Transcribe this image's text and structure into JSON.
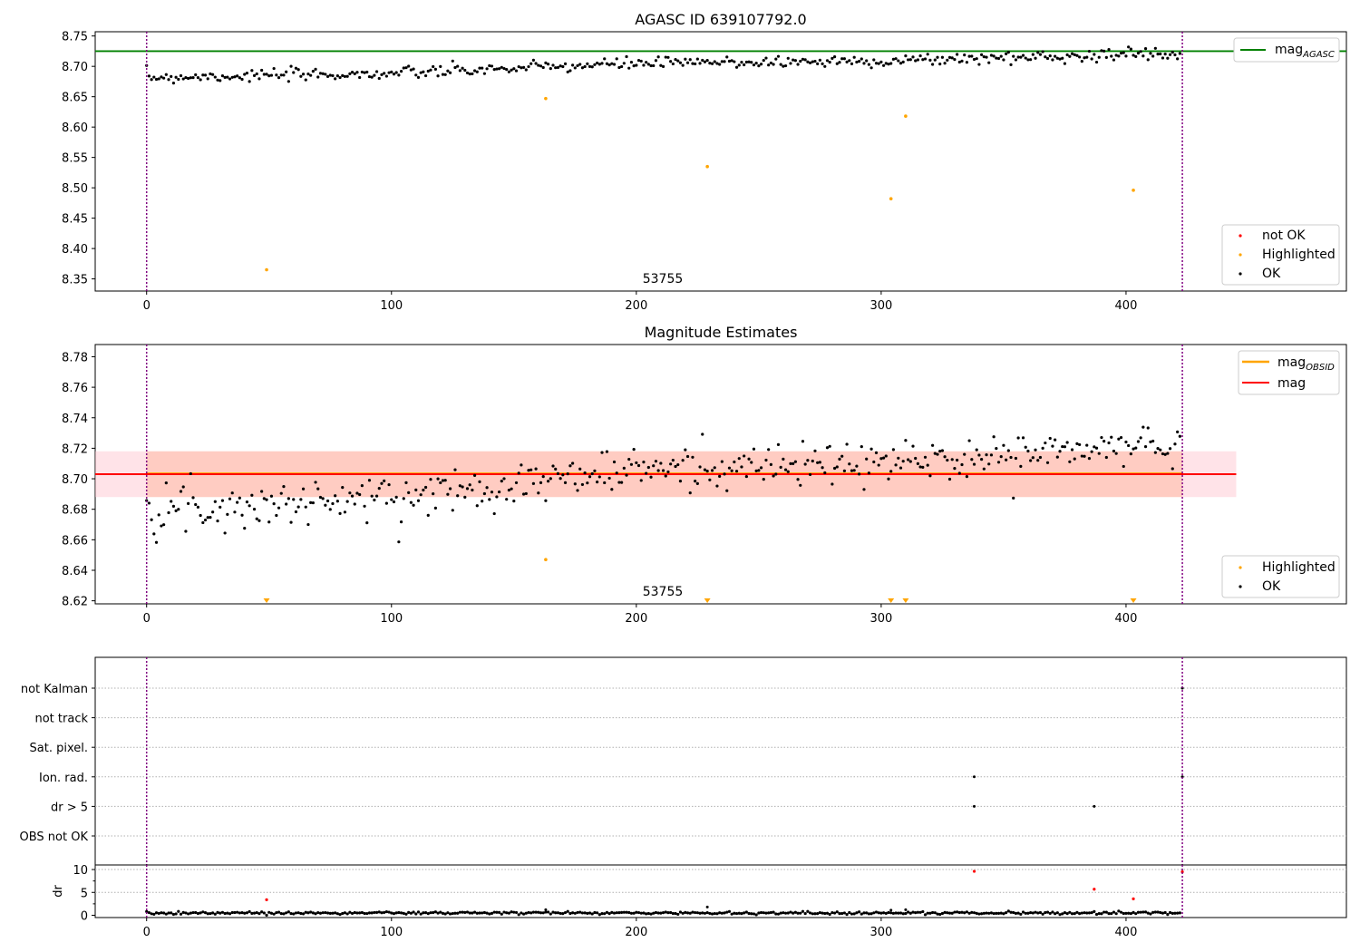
{
  "chart_data": [
    {
      "type": "scatter",
      "title": "AGASC ID 639107792.0",
      "xlabel": "",
      "ylabel": "",
      "xlim": [
        -21,
        490
      ],
      "ylim": [
        8.33,
        8.757
      ],
      "xticks": [
        "0",
        "100",
        "200",
        "300",
        "400"
      ],
      "yticks": [
        "8.35",
        "8.40",
        "8.45",
        "8.50",
        "8.55",
        "8.60",
        "8.65",
        "8.70",
        "8.75"
      ],
      "annotation": {
        "text": "53755",
        "x": 211,
        "y": 8.345
      },
      "vlines": [
        0,
        423
      ],
      "hlines": [
        {
          "name": "mag_AGASC",
          "y": 8.725,
          "color": "#008000"
        }
      ],
      "ok_series": {
        "name": "OK",
        "color": "#000000",
        "n": 423,
        "trend": [
          [
            0,
            8.682
          ],
          [
            100,
            8.688
          ],
          [
            200,
            8.705
          ],
          [
            300,
            8.709
          ],
          [
            423,
            8.722
          ]
        ],
        "noise": 0.005
      },
      "highlighted_series": {
        "name": "Highlighted",
        "color": "#ffa500",
        "points": [
          [
            49,
            8.365
          ],
          [
            163,
            8.647
          ],
          [
            229,
            8.535
          ],
          [
            304,
            8.482
          ],
          [
            310,
            8.618
          ],
          [
            403,
            8.496
          ]
        ]
      },
      "legend": {
        "upper": {
          "position": "top-right",
          "entries": [
            {
              "label": "mag",
              "sub": "AGASC",
              "color": "#008000",
              "kind": "line"
            }
          ]
        },
        "lower": {
          "position": "bottom-right",
          "entries": [
            {
              "label": "not OK",
              "color": "#ff0000",
              "kind": "dot"
            },
            {
              "label": "Highlighted",
              "color": "#ffa500",
              "kind": "dot"
            },
            {
              "label": "OK",
              "color": "#000000",
              "kind": "dot"
            }
          ]
        }
      }
    },
    {
      "type": "scatter",
      "title": "Magnitude Estimates",
      "xlabel": "",
      "ylabel": "",
      "xlim": [
        -21,
        490
      ],
      "ylim": [
        8.618,
        8.788
      ],
      "xticks": [
        "0",
        "100",
        "200",
        "300",
        "400"
      ],
      "yticks": [
        "8.62",
        "8.64",
        "8.66",
        "8.68",
        "8.70",
        "8.72",
        "8.74",
        "8.76",
        "8.78"
      ],
      "annotation": {
        "text": "53755",
        "x": 211,
        "y": 8.623
      },
      "vlines": [
        0,
        423
      ],
      "bands": [
        {
          "name": "mag band",
          "x": [
            -21,
            445
          ],
          "y": [
            8.688,
            8.718
          ],
          "color": "#ffc0cb",
          "opacity": 0.45
        },
        {
          "name": "mag_OBSID band",
          "x": [
            0,
            423
          ],
          "y": [
            8.688,
            8.718
          ],
          "color": "#ffa07a",
          "opacity": 0.35
        }
      ],
      "hlines": [
        {
          "name": "mag_OBSID",
          "y": 8.7035,
          "x": [
            0,
            423
          ],
          "color": "#ffa500"
        },
        {
          "name": "mag",
          "y": 8.703,
          "x": [
            -21,
            445
          ],
          "color": "#ff0000"
        }
      ],
      "ok_series": {
        "name": "OK",
        "color": "#000000",
        "n": 423,
        "trend": [
          [
            0,
            8.683
          ],
          [
            30,
            8.681
          ],
          [
            100,
            8.688
          ],
          [
            200,
            8.706
          ],
          [
            300,
            8.71
          ],
          [
            423,
            8.723
          ]
        ],
        "noise": 0.007
      },
      "highlighted_series": {
        "name": "Highlighted",
        "color": "#ffa500",
        "points": [
          [
            163,
            8.647
          ]
        ],
        "offscale_x": [
          49,
          229,
          304,
          310,
          403
        ]
      },
      "legend": {
        "upper": {
          "position": "top-right",
          "entries": [
            {
              "label": "mag",
              "sub": "OBSID",
              "color": "#ffa500",
              "kind": "line"
            },
            {
              "label": "mag",
              "sub": "",
              "color": "#ff0000",
              "kind": "line"
            }
          ]
        },
        "lower": {
          "position": "bottom-right",
          "entries": [
            {
              "label": "Highlighted",
              "color": "#ffa500",
              "kind": "dot"
            },
            {
              "label": "OK",
              "color": "#000000",
              "kind": "dot"
            }
          ]
        }
      }
    },
    {
      "type": "scatter",
      "title": "",
      "xlabel": "",
      "ylabel": "",
      "xlim": [
        -21,
        490
      ],
      "categories": [
        "not Kalman",
        "not track",
        "Sat. pixel.",
        "Ion. rad.",
        "dr > 5",
        "OBS not OK"
      ],
      "vlines": [
        0,
        423
      ],
      "flag_points": [
        {
          "category": "Ion. rad.",
          "x": [
            338,
            423
          ]
        },
        {
          "category": "dr > 5",
          "x": [
            338,
            387
          ]
        },
        {
          "category": "not Kalman",
          "x": [
            423
          ]
        }
      ],
      "grid": "dotted horizontal"
    },
    {
      "type": "scatter",
      "title": "",
      "xlabel": "",
      "ylabel": "dr",
      "xlim": [
        -21,
        490
      ],
      "ylim": [
        -0.5,
        11
      ],
      "xticks": [
        "0",
        "100",
        "200",
        "300",
        "400"
      ],
      "yticks": [
        "0",
        "5",
        "10"
      ],
      "vlines": [
        0,
        423
      ],
      "ok_series": {
        "name": "OK",
        "color": "#000000",
        "n": 423,
        "level": 0.5,
        "noise": 0.15
      },
      "red_points": [
        [
          49,
          3.4
        ],
        [
          338,
          9.6
        ],
        [
          387,
          5.7
        ],
        [
          403,
          3.6
        ],
        [
          423,
          9.5
        ]
      ],
      "spikes": [
        [
          163,
          1.2
        ],
        [
          229,
          1.8
        ],
        [
          304,
          1.1
        ],
        [
          310,
          1.2
        ]
      ]
    }
  ]
}
